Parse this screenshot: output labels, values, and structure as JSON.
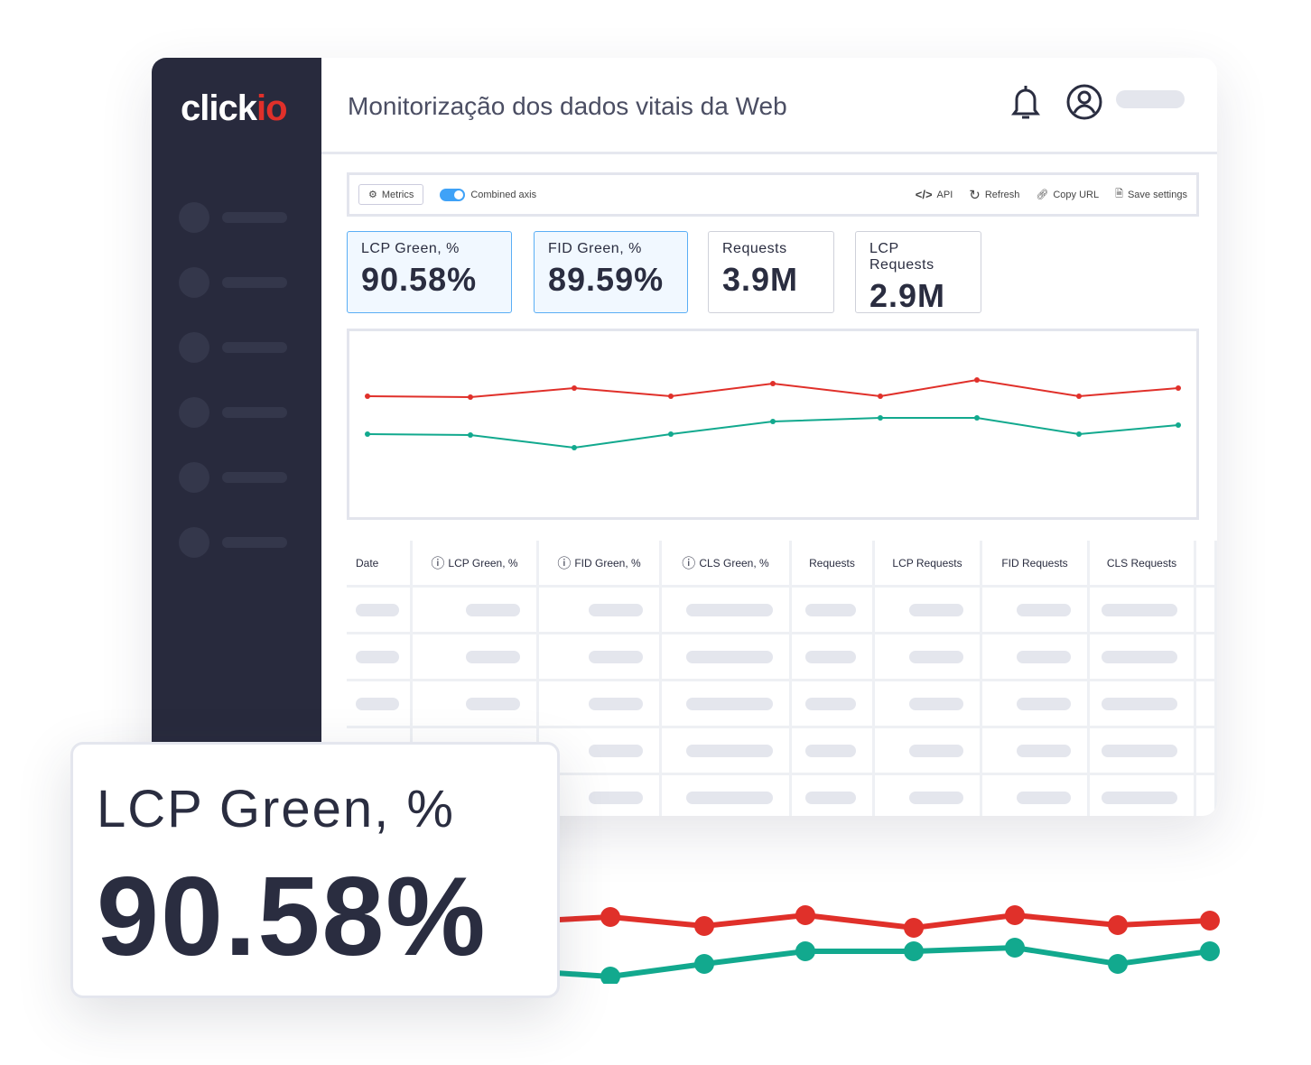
{
  "brand": {
    "logo_main": "click",
    "logo_accent": "io"
  },
  "header": {
    "title": "Monitorização dos dados vitais da Web"
  },
  "toolbar": {
    "metrics": "Metrics",
    "combined_axis": "Combined axis",
    "combined_axis_on": true,
    "api": "API",
    "refresh": "Refresh",
    "copy_url": "Copy URL",
    "save_settings": "Save settings"
  },
  "cards": [
    {
      "label": "LCP Green, %",
      "value": "90.58%"
    },
    {
      "label": "FID Green, %",
      "value": "89.59%"
    },
    {
      "label": "Requests",
      "value": "3.9M"
    },
    {
      "label": "LCP Requests",
      "value": "2.9M"
    }
  ],
  "table": {
    "headers": [
      "Date",
      "LCP Green, %",
      "FID Green, %",
      "CLS Green, %",
      "Requests",
      "LCP Requests",
      "FID Requests",
      "CLS Requests"
    ]
  },
  "highlight": {
    "label": "LCP Green, %",
    "value": "90.58%"
  },
  "chart_data": [
    {
      "type": "line",
      "ylim": [
        26,
        234
      ],
      "series": [
        {
          "name": "red",
          "color": "#e0302a",
          "values": [
            162,
            161,
            171,
            162,
            176,
            162,
            180,
            162,
            171
          ]
        },
        {
          "name": "green",
          "color": "#12a98e",
          "values": [
            120,
            119,
            105,
            120,
            134,
            138,
            138,
            120,
            130
          ]
        }
      ]
    },
    {
      "type": "line",
      "ylim": [
        0,
        100
      ],
      "series": [
        {
          "name": "red",
          "color": "#e0302a",
          "values": [
            62,
            66,
            56,
            68,
            54,
            68,
            57,
            62
          ]
        },
        {
          "name": "green",
          "color": "#12a98e",
          "values": [
            5,
            0,
            14,
            28,
            28,
            32,
            14,
            28
          ]
        }
      ]
    }
  ],
  "colors": {
    "accent": "#3fa2f7",
    "sidebar": "#282a3d"
  }
}
